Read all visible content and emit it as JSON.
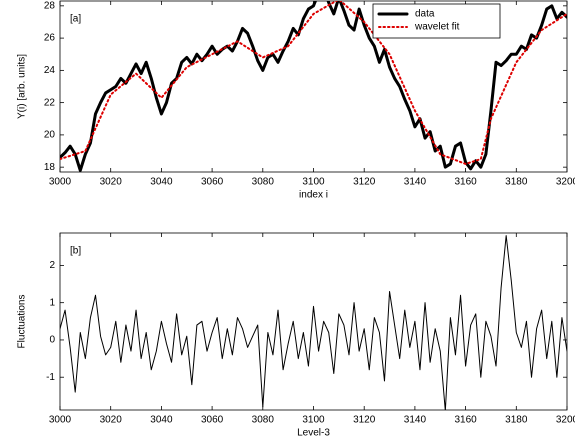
{
  "chart_data": [
    {
      "type": "line",
      "annotation": "[a]",
      "xlabel": "index i",
      "ylabel": "Y(i) [arb. units]",
      "xlim": [
        3000,
        3200
      ],
      "ylim": [
        17.7,
        28.3
      ],
      "xticks": [
        3000,
        3020,
        3040,
        3060,
        3080,
        3100,
        3120,
        3140,
        3160,
        3180,
        3200
      ],
      "yticks": [
        18,
        20,
        22,
        24,
        26,
        28
      ],
      "legend": "upper right",
      "series": [
        {
          "name": "data",
          "color": "#000000",
          "linestyle": "solid",
          "linewidth": 3,
          "x": [
            3000,
            3002,
            3004,
            3006,
            3008,
            3010,
            3012,
            3014,
            3016,
            3018,
            3020,
            3022,
            3024,
            3026,
            3028,
            3030,
            3032,
            3034,
            3036,
            3038,
            3040,
            3042,
            3044,
            3046,
            3048,
            3050,
            3052,
            3054,
            3056,
            3058,
            3060,
            3062,
            3064,
            3066,
            3068,
            3070,
            3072,
            3074,
            3076,
            3078,
            3080,
            3082,
            3084,
            3086,
            3088,
            3090,
            3092,
            3094,
            3096,
            3098,
            3100,
            3102,
            3104,
            3106,
            3108,
            3110,
            3112,
            3114,
            3116,
            3118,
            3120,
            3122,
            3124,
            3126,
            3128,
            3130,
            3132,
            3134,
            3136,
            3138,
            3140,
            3142,
            3144,
            3146,
            3148,
            3150,
            3152,
            3154,
            3156,
            3158,
            3160,
            3162,
            3164,
            3166,
            3168,
            3170,
            3172,
            3174,
            3176,
            3178,
            3180,
            3182,
            3184,
            3186,
            3188,
            3190,
            3192,
            3194,
            3196,
            3198,
            3200
          ],
          "values": [
            18.6,
            18.9,
            19.3,
            18.8,
            17.8,
            18.8,
            19.5,
            21.3,
            22,
            22.6,
            22.8,
            23,
            23.5,
            23.2,
            23.8,
            24.4,
            23.8,
            24.5,
            23.5,
            22.3,
            21.3,
            22,
            23.2,
            23.5,
            24.5,
            24.8,
            24.4,
            25,
            24.6,
            25,
            25.5,
            25,
            25.3,
            25.5,
            25.2,
            25.8,
            26.6,
            26.3,
            25.5,
            24.6,
            24,
            24.8,
            25,
            24.5,
            25.2,
            25.8,
            26.6,
            26.2,
            27.2,
            27.8,
            28,
            28.8,
            29.1,
            28.2,
            27.5,
            28.5,
            27.7,
            26.8,
            26.5,
            27.8,
            26.8,
            26,
            25.5,
            24.5,
            25.3,
            24.2,
            23.5,
            23,
            22.2,
            21.5,
            20.5,
            21,
            19.8,
            20.2,
            19,
            19.3,
            18,
            18.2,
            19.3,
            19.5,
            18.3,
            17.9,
            18.4,
            18,
            18.8,
            21.5,
            24.5,
            24.3,
            24.6,
            25,
            25,
            25.5,
            25.3,
            26.2,
            26,
            26.8,
            27.8,
            28,
            27.2,
            27.6,
            27.3
          ]
        },
        {
          "name": "wavelet fit",
          "color": "#dd0000",
          "linestyle": "dotted",
          "linewidth": 2,
          "x": [
            3000,
            3010,
            3020,
            3030,
            3040,
            3050,
            3060,
            3070,
            3080,
            3090,
            3100,
            3110,
            3120,
            3130,
            3140,
            3150,
            3160,
            3166,
            3170,
            3180,
            3190,
            3200
          ],
          "values": [
            18.5,
            19,
            22.5,
            23.8,
            22.3,
            24.2,
            25,
            25.8,
            24.8,
            25.5,
            27.5,
            28.4,
            27,
            25,
            21.5,
            18.8,
            18.2,
            18.5,
            21,
            24.5,
            26.5,
            27.5
          ]
        }
      ]
    },
    {
      "type": "line",
      "annotation": "[b]",
      "xlabel": "Level-3",
      "ylabel": "Fluctuations",
      "xlim": [
        3000,
        3200
      ],
      "ylim": [
        -1.88,
        2.87
      ],
      "xticks": [
        3000,
        3020,
        3040,
        3060,
        3080,
        3100,
        3120,
        3140,
        3160,
        3180,
        3200
      ],
      "yticks": [
        -1,
        0,
        1,
        2
      ],
      "series": [
        {
          "color": "#000000",
          "linestyle": "solid",
          "linewidth": 1,
          "x": [
            3000,
            3002,
            3004,
            3006,
            3008,
            3010,
            3012,
            3014,
            3016,
            3018,
            3020,
            3022,
            3024,
            3026,
            3028,
            3030,
            3032,
            3034,
            3036,
            3038,
            3040,
            3042,
            3044,
            3046,
            3048,
            3050,
            3052,
            3054,
            3056,
            3058,
            3060,
            3062,
            3064,
            3066,
            3068,
            3070,
            3072,
            3074,
            3076,
            3078,
            3080,
            3082,
            3084,
            3086,
            3088,
            3090,
            3092,
            3094,
            3096,
            3098,
            3100,
            3102,
            3104,
            3106,
            3108,
            3110,
            3112,
            3114,
            3116,
            3118,
            3120,
            3122,
            3124,
            3126,
            3128,
            3130,
            3132,
            3134,
            3136,
            3138,
            3140,
            3142,
            3144,
            3146,
            3148,
            3150,
            3152,
            3154,
            3156,
            3158,
            3160,
            3162,
            3164,
            3166,
            3168,
            3170,
            3172,
            3174,
            3176,
            3178,
            3180,
            3182,
            3184,
            3186,
            3188,
            3190,
            3192,
            3194,
            3196,
            3198,
            3200
          ],
          "values": [
            0.3,
            0.8,
            -0.2,
            -1.4,
            0.2,
            -0.5,
            0.6,
            1.2,
            0.1,
            -0.4,
            -0.2,
            0.5,
            -0.6,
            0.4,
            -0.3,
            0.8,
            -0.5,
            0.2,
            -0.8,
            -0.3,
            0.5,
            -0.1,
            -0.6,
            0.7,
            -0.4,
            0.1,
            -1.2,
            0.4,
            0.5,
            -0.3,
            0.2,
            0.6,
            -0.5,
            0.3,
            -0.4,
            0.6,
            0.3,
            -0.2,
            0.1,
            0.4,
            -1.8,
            0.2,
            -0.4,
            0.8,
            -0.8,
            -0.1,
            0.5,
            -0.5,
            0.2,
            -0.7,
            0.9,
            -0.3,
            0.5,
            0.2,
            -0.9,
            0.7,
            0.4,
            -0.4,
            1.0,
            -0.3,
            0.3,
            -0.8,
            0.6,
            0.2,
            -1.1,
            1.3,
            0.4,
            -0.5,
            0.8,
            -0.2,
            0.5,
            -0.8,
            1.0,
            -0.6,
            0.3,
            -0.3,
            -1.9,
            0.6,
            -0.4,
            1.2,
            -0.7,
            0.4,
            0.7,
            -1.0,
            0.5,
            0.1,
            -0.7,
            1.4,
            2.8,
            1.6,
            0.2,
            -0.2,
            0.5,
            -1.0,
            0.3,
            0.8,
            -0.5,
            0.5,
            -1.0,
            0.6,
            -0.3
          ]
        }
      ]
    }
  ]
}
